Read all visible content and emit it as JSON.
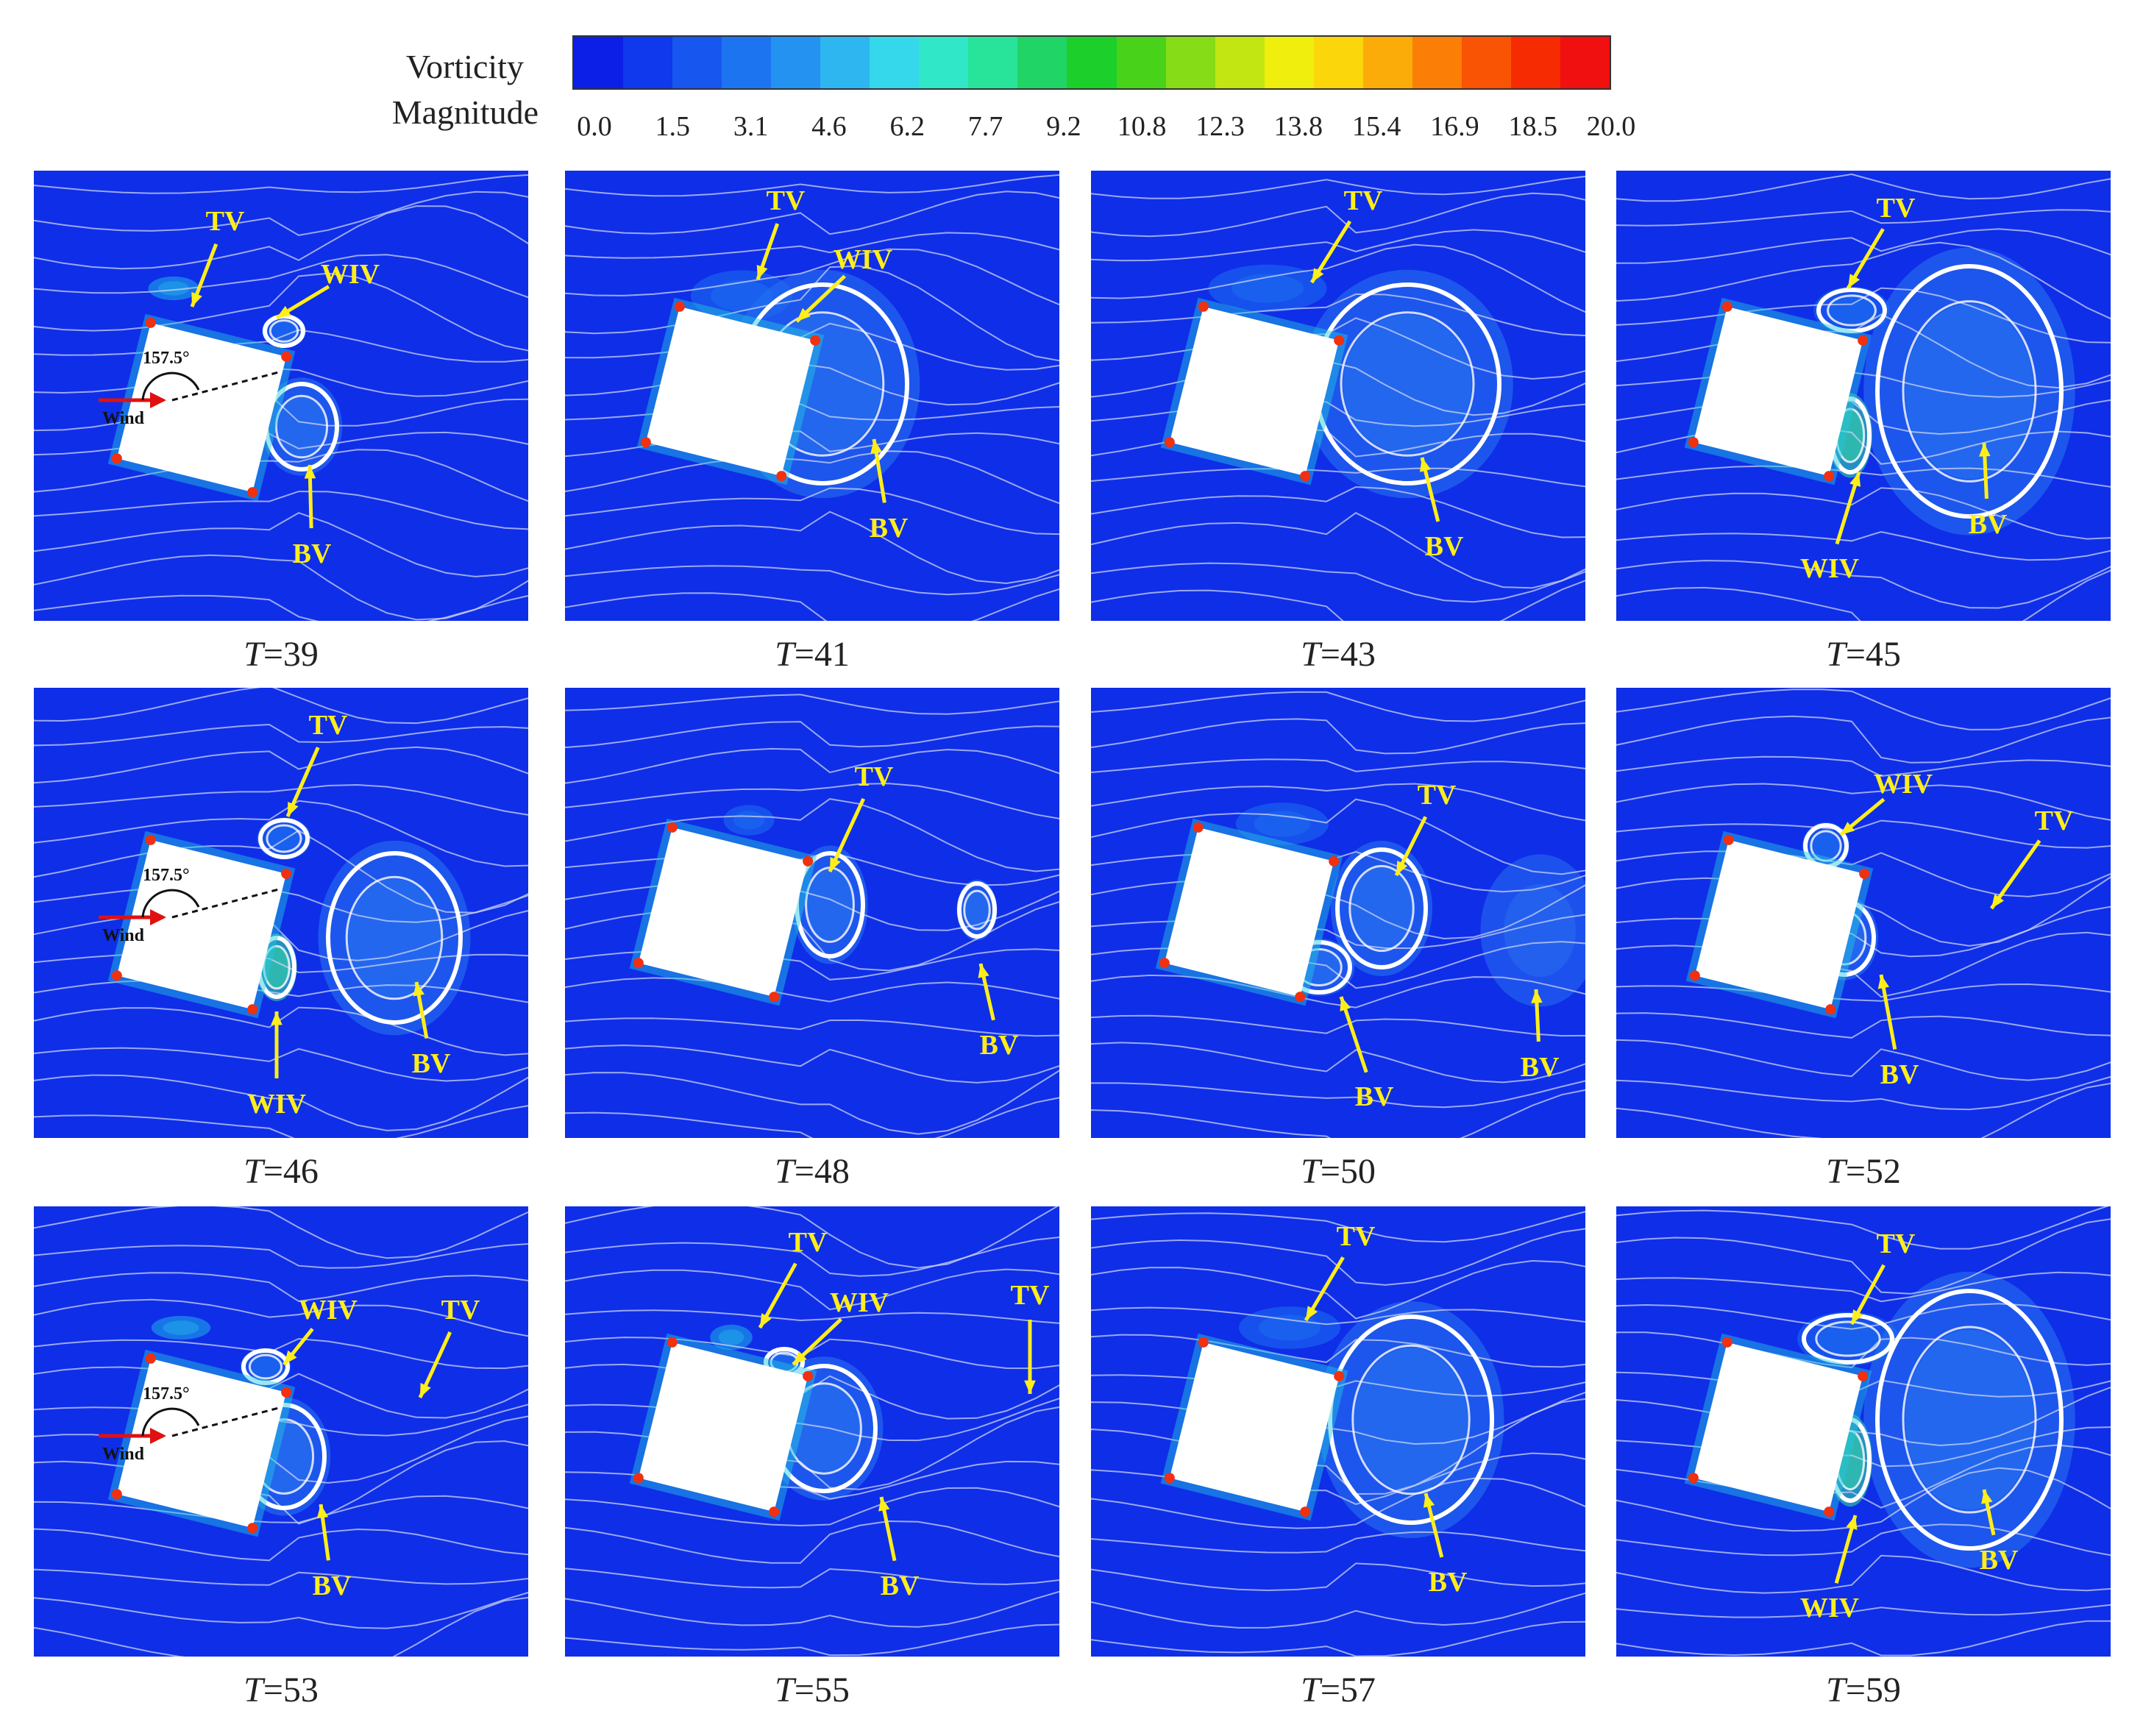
{
  "colorbar": {
    "title_line1": "Vorticity",
    "title_line2": "Magnitude",
    "ticks": [
      "0.0",
      "1.5",
      "3.1",
      "4.6",
      "6.2",
      "7.7",
      "9.2",
      "10.8",
      "12.3",
      "13.8",
      "15.4",
      "16.9",
      "18.5",
      "20.0"
    ],
    "colors": [
      "#0b1fe6",
      "#1038ec",
      "#1756ef",
      "#1d74f1",
      "#2492f0",
      "#2db6ef",
      "#35d8ea",
      "#30e7c8",
      "#28e39a",
      "#20d466",
      "#1ccf2a",
      "#48d31a",
      "#86dc16",
      "#c2e611",
      "#efee0c",
      "#fbd60a",
      "#fcac08",
      "#fb7f06",
      "#f95304",
      "#f62b02",
      "#f01010"
    ]
  },
  "panels": [
    {
      "t_prefix": "T",
      "t_value": "=39",
      "has_wind": true,
      "angle": "157.5°",
      "wind": "Wind",
      "labels": [
        {
          "text": "TV",
          "kind": "TV"
        },
        {
          "text": "WIV",
          "kind": "WIV"
        },
        {
          "text": "BV",
          "kind": "BV"
        }
      ]
    },
    {
      "t_prefix": "T",
      "t_value": "=41",
      "has_wind": false,
      "labels": [
        {
          "text": "TV",
          "kind": "TV"
        },
        {
          "text": "WIV",
          "kind": "WIV"
        },
        {
          "text": "BV",
          "kind": "BV"
        }
      ]
    },
    {
      "t_prefix": "T",
      "t_value": "=43",
      "has_wind": false,
      "labels": [
        {
          "text": "TV",
          "kind": "TV"
        },
        {
          "text": "BV",
          "kind": "BV"
        }
      ]
    },
    {
      "t_prefix": "T",
      "t_value": "=45",
      "has_wind": false,
      "labels": [
        {
          "text": "TV",
          "kind": "TV"
        },
        {
          "text": "WIV",
          "kind": "WIV"
        },
        {
          "text": "BV",
          "kind": "BV"
        }
      ]
    },
    {
      "t_prefix": "T",
      "t_value": "=46",
      "has_wind": true,
      "angle": "157.5°",
      "wind": "Wind",
      "labels": [
        {
          "text": "TV",
          "kind": "TV"
        },
        {
          "text": "WIV",
          "kind": "WIV"
        },
        {
          "text": "BV",
          "kind": "BV"
        }
      ]
    },
    {
      "t_prefix": "T",
      "t_value": "=48",
      "has_wind": false,
      "labels": [
        {
          "text": "TV",
          "kind": "TV"
        },
        {
          "text": "BV",
          "kind": "BV"
        }
      ]
    },
    {
      "t_prefix": "T",
      "t_value": "=50",
      "has_wind": false,
      "labels": [
        {
          "text": "TV",
          "kind": "TV"
        },
        {
          "text": "BV",
          "kind": "BV"
        },
        {
          "text": "BV",
          "kind": "BV2"
        }
      ]
    },
    {
      "t_prefix": "T",
      "t_value": "=52",
      "has_wind": false,
      "labels": [
        {
          "text": "WIV",
          "kind": "WIV"
        },
        {
          "text": "TV",
          "kind": "TV"
        },
        {
          "text": "BV",
          "kind": "BV"
        }
      ]
    },
    {
      "t_prefix": "T",
      "t_value": "=53",
      "has_wind": true,
      "angle": "157.5°",
      "wind": "Wind",
      "labels": [
        {
          "text": "WIV",
          "kind": "WIV"
        },
        {
          "text": "TV",
          "kind": "TV"
        },
        {
          "text": "BV",
          "kind": "BV"
        }
      ]
    },
    {
      "t_prefix": "T",
      "t_value": "=55",
      "has_wind": false,
      "labels": [
        {
          "text": "TV",
          "kind": "TV"
        },
        {
          "text": "WIV",
          "kind": "WIV"
        },
        {
          "text": "TV",
          "kind": "TV2"
        },
        {
          "text": "BV",
          "kind": "BV"
        }
      ]
    },
    {
      "t_prefix": "T",
      "t_value": "=57",
      "has_wind": false,
      "labels": [
        {
          "text": "TV",
          "kind": "TV"
        },
        {
          "text": "BV",
          "kind": "BV"
        }
      ]
    },
    {
      "t_prefix": "T",
      "t_value": "=59",
      "has_wind": false,
      "labels": [
        {
          "text": "TV",
          "kind": "TV"
        },
        {
          "text": "WIV",
          "kind": "WIV"
        },
        {
          "text": "BV",
          "kind": "BV"
        }
      ]
    }
  ]
}
